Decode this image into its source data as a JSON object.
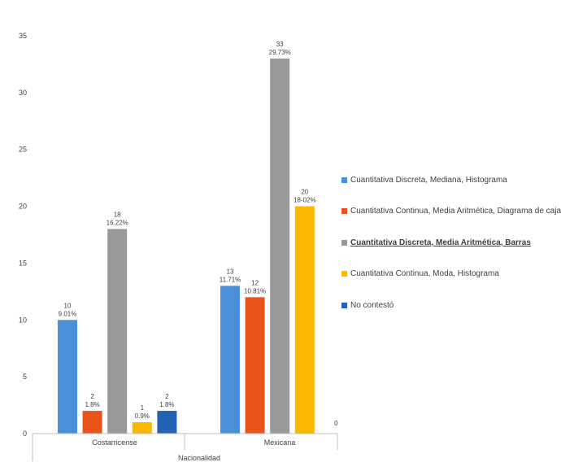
{
  "chart_data": {
    "type": "bar",
    "xlabel": "Nacionalidad",
    "ylabel": "",
    "ylim": [
      0,
      35
    ],
    "yticks": [
      0,
      5,
      10,
      15,
      20,
      25,
      30,
      35
    ],
    "grid": false,
    "legend_position": "right",
    "categories": [
      "Costarricense",
      "Mexicana"
    ],
    "series": [
      {
        "name": "Cuantitativa Discreta, Mediana, Histograma",
        "color": "#4a90d9",
        "values": [
          10,
          13
        ],
        "percent_labels": [
          "9.01%",
          "11.71%"
        ]
      },
      {
        "name": "Cuantitativa Continua, Media Aritmética, Diagrama de caja",
        "color": "#e8541c",
        "values": [
          2,
          12
        ],
        "percent_labels": [
          "1.8%",
          "10.81%"
        ]
      },
      {
        "name": "Cuantitativa Discreta, Media Aritmética, Barras",
        "color": "#999999",
        "values": [
          18,
          33
        ],
        "percent_labels": [
          "16.22%",
          "29.73%"
        ],
        "highlighted": true
      },
      {
        "name": "Cuantitativa Continua, Moda, Histograma",
        "color": "#fbb800",
        "values": [
          1,
          20
        ],
        "percent_labels": [
          "0.9%",
          "18-02%"
        ]
      },
      {
        "name": "No contestó",
        "color": "#2462b6",
        "values": [
          2,
          0
        ],
        "percent_labels": [
          "1.8%",
          ""
        ]
      }
    ]
  }
}
